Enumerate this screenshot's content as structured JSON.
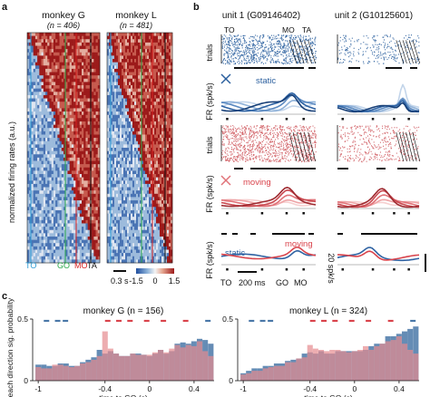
{
  "panels": {
    "a": {
      "letter": "a",
      "left_title": "monkey G",
      "left_n": "(n = 406)",
      "right_title": "monkey L",
      "right_n": "(n = 481)",
      "ylabel": "normalized  firing rates (a.u.)",
      "markers": {
        "to": "TO",
        "go": "GO",
        "mo": "MO",
        "ta": "TA"
      },
      "scalebar": "0.3 s",
      "colorbar_ticks": [
        "-1.5",
        "0",
        "1.5"
      ]
    },
    "b": {
      "letter": "b",
      "unit1": "unit 1 (G09146402)",
      "unit2": "unit 2 (G10125601)",
      "trials_label": "trials",
      "fr_label": "FR (spk/s)",
      "fr_label_short": "FR (spk/s)",
      "static_label": "static",
      "moving_label": "moving",
      "markers": {
        "to": "TO",
        "mo": "MO",
        "ta": "TA",
        "go": "GO"
      },
      "time_scale": "200 ms",
      "rate_scale": "20 spk/s",
      "bottom_static": "static",
      "bottom_moving": "moving"
    },
    "c": {
      "letter": "c",
      "ylabel": "reach direction sig. probability",
      "xlabel": "time to GO (s)",
      "colors": {
        "static": "#4a78a8",
        "moving": "#e58a8f"
      }
    }
  },
  "chart_data": [
    {
      "type": "bar",
      "title": "monkey G (n = 156)",
      "xlabel": "time to GO (s)",
      "ylabel": "reach direction sig. probability",
      "xlim": [
        -1.05,
        0.58
      ],
      "ylim": [
        0,
        0.5
      ],
      "xticks": [
        "-1",
        "-0.4",
        "0",
        "0.4"
      ],
      "xtick_values": [
        -1,
        -0.4,
        0,
        0.4
      ],
      "yticks": [
        "0",
        "0.5"
      ],
      "yticks_values": [
        0,
        0.5
      ],
      "bin_width": 0.05,
      "x": [
        -1.0,
        -0.95,
        -0.9,
        -0.85,
        -0.8,
        -0.75,
        -0.7,
        -0.65,
        -0.6,
        -0.55,
        -0.5,
        -0.45,
        -0.4,
        -0.35,
        -0.3,
        -0.25,
        -0.2,
        -0.15,
        -0.1,
        -0.05,
        0.0,
        0.05,
        0.1,
        0.15,
        0.2,
        0.25,
        0.3,
        0.35,
        0.4,
        0.45,
        0.5,
        0.55
      ],
      "series": [
        {
          "values": [
            0.13,
            0.13,
            0.12,
            0.12,
            0.14,
            0.14,
            0.12,
            0.12,
            0.15,
            0.17,
            0.19,
            0.25,
            0.22,
            0.24,
            0.22,
            0.2,
            0.2,
            0.22,
            0.22,
            0.21,
            0.2,
            0.22,
            0.25,
            0.22,
            0.24,
            0.3,
            0.31,
            0.3,
            0.32,
            0.34,
            0.33,
            0.3
          ]
        },
        {
          "values": [
            0.11,
            0.1,
            0.1,
            0.13,
            0.13,
            0.12,
            0.11,
            0.12,
            0.14,
            0.15,
            0.17,
            0.2,
            0.4,
            0.26,
            0.22,
            0.2,
            0.2,
            0.22,
            0.21,
            0.21,
            0.21,
            0.23,
            0.25,
            0.23,
            0.26,
            0.29,
            0.27,
            0.29,
            0.28,
            0.32,
            0.24,
            0.2
          ]
        }
      ]
    },
    {
      "type": "bar",
      "title": "monkey L (n = 324)",
      "xlabel": "time to GO (s)",
      "ylabel": "",
      "xlim": [
        -1.05,
        0.58
      ],
      "ylim": [
        0,
        0.5
      ],
      "xticks": [
        "-1",
        "-0.4",
        "0",
        "0.4"
      ],
      "xtick_values": [
        -1,
        -0.4,
        0,
        0.4
      ],
      "yticks": [
        "0",
        "0.5"
      ],
      "yticks_values": [
        0,
        0.5
      ],
      "bin_width": 0.05,
      "x": [
        -1.0,
        -0.95,
        -0.9,
        -0.85,
        -0.8,
        -0.75,
        -0.7,
        -0.65,
        -0.6,
        -0.55,
        -0.5,
        -0.45,
        -0.4,
        -0.35,
        -0.3,
        -0.25,
        -0.2,
        -0.15,
        -0.1,
        -0.05,
        0.0,
        0.05,
        0.1,
        0.15,
        0.2,
        0.25,
        0.3,
        0.35,
        0.4,
        0.45,
        0.5,
        0.55
      ],
      "series": [
        {
          "values": [
            0.06,
            0.08,
            0.1,
            0.1,
            0.12,
            0.12,
            0.14,
            0.14,
            0.16,
            0.17,
            0.18,
            0.22,
            0.23,
            0.22,
            0.24,
            0.22,
            0.22,
            0.24,
            0.24,
            0.24,
            0.24,
            0.24,
            0.25,
            0.28,
            0.3,
            0.3,
            0.36,
            0.36,
            0.38,
            0.4,
            0.42,
            0.44
          ]
        },
        {
          "values": [
            0.05,
            0.06,
            0.08,
            0.08,
            0.1,
            0.11,
            0.12,
            0.12,
            0.15,
            0.15,
            0.18,
            0.19,
            0.29,
            0.26,
            0.25,
            0.24,
            0.25,
            0.25,
            0.24,
            0.23,
            0.24,
            0.25,
            0.28,
            0.25,
            0.28,
            0.3,
            0.32,
            0.33,
            0.36,
            0.3,
            0.25,
            0.22
          ]
        }
      ]
    }
  ]
}
